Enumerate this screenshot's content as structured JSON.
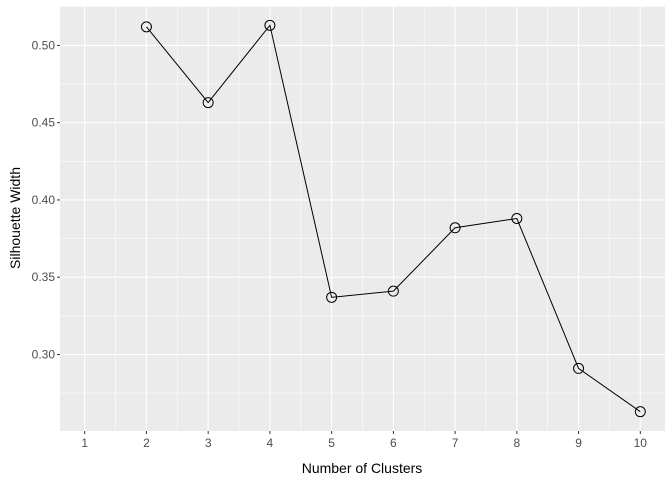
{
  "chart_data": {
    "type": "line",
    "title": "",
    "xlabel": "Number of Clusters",
    "ylabel": "Silhouette Width",
    "x": [
      1,
      2,
      3,
      4,
      5,
      6,
      7,
      8,
      9,
      10
    ],
    "x_tick_labels": [
      "1",
      "2",
      "3",
      "4",
      "5",
      "6",
      "7",
      "8",
      "9",
      "10"
    ],
    "series": [
      {
        "points": [
          {
            "x": 2,
            "y": 0.512
          },
          {
            "x": 3,
            "y": 0.463
          },
          {
            "x": 4,
            "y": 0.513
          },
          {
            "x": 5,
            "y": 0.337
          },
          {
            "x": 6,
            "y": 0.341
          },
          {
            "x": 7,
            "y": 0.382
          },
          {
            "x": 8,
            "y": 0.388
          },
          {
            "x": 9,
            "y": 0.291
          },
          {
            "x": 10,
            "y": 0.263
          }
        ]
      }
    ],
    "y_ticks": [
      0.3,
      0.35,
      0.4,
      0.45,
      0.5
    ],
    "y_tick_labels": [
      "0.30",
      "0.35",
      "0.40",
      "0.45",
      "0.50"
    ],
    "xlim": [
      0.6,
      10.4
    ],
    "ylim": [
      0.2505,
      0.5255
    ],
    "grid": true,
    "legend": "none",
    "marker": "open-circle",
    "colors": {
      "panel_background": "#ebebeb",
      "grid_major": "#ffffff",
      "line": "#000000",
      "tick_text": "#4d4d4d",
      "axis_title": "#000000"
    }
  }
}
